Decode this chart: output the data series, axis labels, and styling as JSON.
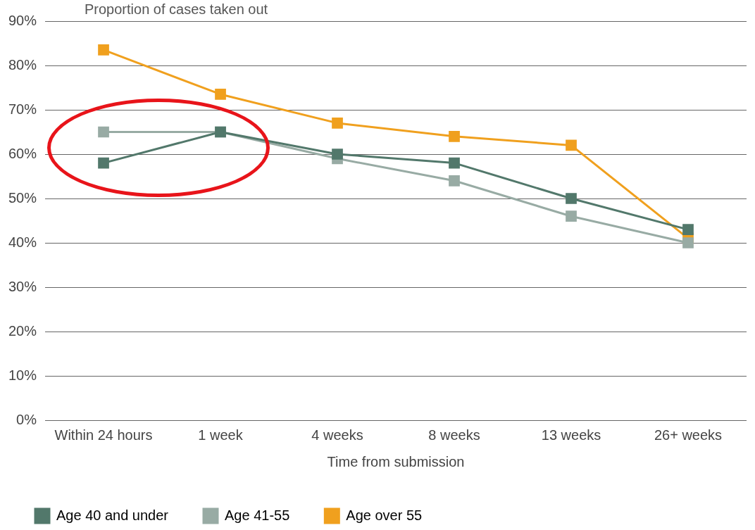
{
  "chart_data": {
    "type": "line",
    "ylabel": "Proportion of cases taken out",
    "xlabel": "Time from submission",
    "categories": [
      "Within 24 hours",
      "1 week",
      "4 weeks",
      "8 weeks",
      "13 weeks",
      "26+ weeks"
    ],
    "series": [
      {
        "name": "Age 40 and under",
        "color": "#52786b",
        "values": [
          58,
          65,
          60,
          58,
          50,
          43
        ]
      },
      {
        "name": "Age 41-55",
        "color": "#98aba4",
        "values": [
          65,
          65,
          59,
          54,
          46,
          40
        ]
      },
      {
        "name": "Age over 55",
        "color": "#f0a01e",
        "values": [
          83.5,
          73.5,
          67,
          64,
          62,
          41
        ]
      }
    ],
    "ylim": [
      0,
      90
    ],
    "yticks": [
      {
        "value": 0,
        "label": "0%"
      },
      {
        "value": 10,
        "label": "10%"
      },
      {
        "value": 20,
        "label": "20%"
      },
      {
        "value": 30,
        "label": "30%"
      },
      {
        "value": 40,
        "label": "40%"
      },
      {
        "value": 50,
        "label": "50%"
      },
      {
        "value": 60,
        "label": "60%"
      },
      {
        "value": 70,
        "label": "70%"
      },
      {
        "value": 80,
        "label": "80%"
      },
      {
        "value": 90,
        "label": "90%"
      }
    ],
    "grid": "y",
    "legend": "bottom left",
    "marker": "square",
    "line_style": "solid"
  }
}
